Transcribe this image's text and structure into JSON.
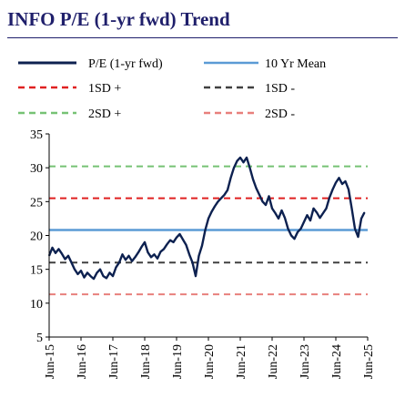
{
  "title": "INFO P/E (1-yr fwd) Trend",
  "chart_data": {
    "type": "line",
    "title": "INFO P/E (1-yr fwd) Trend",
    "xlabel": "",
    "ylabel": "",
    "ylim": [
      5,
      35
    ],
    "yticks": [
      5,
      10,
      15,
      20,
      25,
      30,
      35
    ],
    "xlim": [
      2015.45,
      2025.45
    ],
    "xtick_labels": [
      "Jun-15",
      "Jun-16",
      "Jun-17",
      "Jun-18",
      "Jun-19",
      "Jun-20",
      "Jun-21",
      "Jun-22",
      "Jun-23",
      "Jun-24",
      "Jun-25"
    ],
    "grid": false,
    "legend_position": "top",
    "series": [
      {
        "name": "P/E (1-yr fwd)",
        "color": "#0d2150",
        "style": "solid",
        "x": [
          2015.45,
          2015.55,
          2015.65,
          2015.75,
          2015.85,
          2015.95,
          2016.05,
          2016.15,
          2016.25,
          2016.35,
          2016.45,
          2016.55,
          2016.65,
          2016.75,
          2016.85,
          2016.95,
          2017.05,
          2017.15,
          2017.25,
          2017.35,
          2017.45,
          2017.55,
          2017.65,
          2017.75,
          2017.85,
          2017.95,
          2018.05,
          2018.15,
          2018.25,
          2018.35,
          2018.45,
          2018.55,
          2018.65,
          2018.75,
          2018.85,
          2018.95,
          2019.05,
          2019.15,
          2019.25,
          2019.35,
          2019.45,
          2019.55,
          2019.65,
          2019.75,
          2019.85,
          2019.95,
          2020.05,
          2020.15,
          2020.25,
          2020.35,
          2020.45,
          2020.55,
          2020.65,
          2020.75,
          2020.85,
          2020.95,
          2021.05,
          2021.15,
          2021.25,
          2021.35,
          2021.45,
          2021.55,
          2021.65,
          2021.75,
          2021.85,
          2021.95,
          2022.05,
          2022.15,
          2022.25,
          2022.35,
          2022.45,
          2022.55,
          2022.65,
          2022.75,
          2022.85,
          2022.95,
          2023.05,
          2023.15,
          2023.25,
          2023.35,
          2023.45,
          2023.55,
          2023.65,
          2023.75,
          2023.85,
          2023.95,
          2024.05,
          2024.15,
          2024.25,
          2024.35,
          2024.45,
          2024.55,
          2024.65,
          2024.75,
          2024.85,
          2024.95,
          2025.05,
          2025.15,
          2025.25,
          2025.35
        ],
        "y": [
          17.0,
          18.2,
          17.4,
          18.0,
          17.3,
          16.5,
          17.0,
          16.0,
          15.0,
          14.3,
          14.8,
          13.8,
          14.5,
          14.0,
          13.6,
          14.5,
          15.0,
          14.0,
          13.7,
          14.5,
          14.0,
          15.3,
          16.0,
          17.2,
          16.4,
          17.0,
          16.2,
          16.8,
          17.5,
          18.3,
          19.0,
          17.5,
          16.8,
          17.2,
          16.6,
          17.6,
          18.0,
          18.7,
          19.3,
          19.0,
          19.7,
          20.2,
          19.4,
          18.6,
          17.2,
          16.0,
          14.0,
          17.0,
          18.5,
          20.8,
          22.5,
          23.5,
          24.3,
          25.0,
          25.5,
          26.0,
          26.7,
          28.5,
          30.0,
          31.0,
          31.5,
          30.8,
          31.5,
          30.0,
          28.3,
          27.0,
          26.0,
          25.0,
          24.5,
          25.8,
          24.0,
          23.3,
          22.5,
          23.7,
          22.6,
          21.0,
          20.0,
          19.5,
          20.5,
          21.0,
          22.0,
          23.0,
          22.2,
          24.0,
          23.4,
          22.6,
          23.3,
          24.0,
          25.6,
          26.8,
          27.8,
          28.5,
          27.6,
          28.0,
          26.8,
          24.0,
          21.0,
          19.8,
          22.5,
          23.4
        ]
      },
      {
        "name": "10 Yr Mean",
        "color": "#5b9bd5",
        "style": "solid",
        "value": 20.8
      },
      {
        "name": "1SD +",
        "color": "#e02020",
        "style": "dashed",
        "value": 25.5
      },
      {
        "name": "1SD -",
        "color": "#404040",
        "style": "dashed",
        "value": 16.0
      },
      {
        "name": "2SD +",
        "color": "#76c274",
        "style": "dashed",
        "value": 30.2
      },
      {
        "name": "2SD -",
        "color": "#e8807c",
        "style": "dashed",
        "value": 11.3
      }
    ]
  }
}
